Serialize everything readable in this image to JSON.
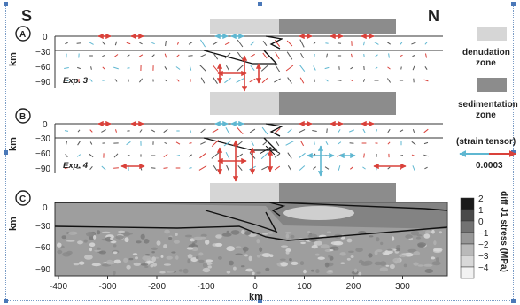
{
  "labels": {
    "south": "S",
    "north": "N",
    "panels": [
      "A",
      "B",
      "C"
    ],
    "exp_a": "Exp. 3",
    "exp_b": "Exp. 4",
    "km": "km",
    "x_axis_title": "km"
  },
  "axis": {
    "x_ticks": [
      "-400",
      "-300",
      "-200",
      "-100",
      "0",
      "100",
      "200",
      "300"
    ],
    "y_ticks_ab": [
      "0",
      "−30",
      "−60",
      "−90"
    ],
    "y_ticks_c": [
      "0",
      "−30",
      "−60",
      "−90"
    ]
  },
  "legend": {
    "denudation_line1": "denudation",
    "denudation_line2": "zone",
    "sedimentation_line1": "sedimentation",
    "sedimentation_line2": "zone",
    "strain_tensor": "(strain tensor)",
    "strain_scale": "0.0003"
  },
  "colorbar": {
    "title": "diff J1 stress (MPa)",
    "ticks": [
      "2",
      "1",
      "0",
      "−1",
      "−2",
      "−3",
      "−4"
    ],
    "colors": [
      "#1a1a1a",
      "#4a4a4a",
      "#727272",
      "#979797",
      "#b9b9b9",
      "#d8d8d8",
      "#f2f2f2"
    ]
  },
  "colors": {
    "denudation": "#d6d6d6",
    "sedimentation": "#8c8c8c",
    "extension": "#d9413a",
    "compression": "#5fb7d1",
    "fault": "#111111"
  }
}
